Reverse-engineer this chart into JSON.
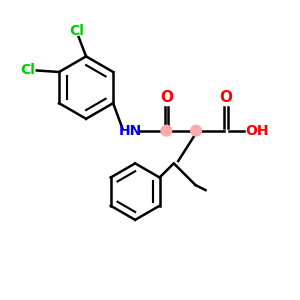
{
  "bg_color": "#ffffff",
  "bond_color": "#000000",
  "cl_color": "#00cc00",
  "o_color": "#ff0000",
  "n_color": "#0000ff",
  "stereo_color": "#ffaaaa",
  "figsize": [
    3.0,
    3.0
  ],
  "dpi": 100,
  "xlim": [
    0,
    10
  ],
  "ylim": [
    0,
    10
  ]
}
